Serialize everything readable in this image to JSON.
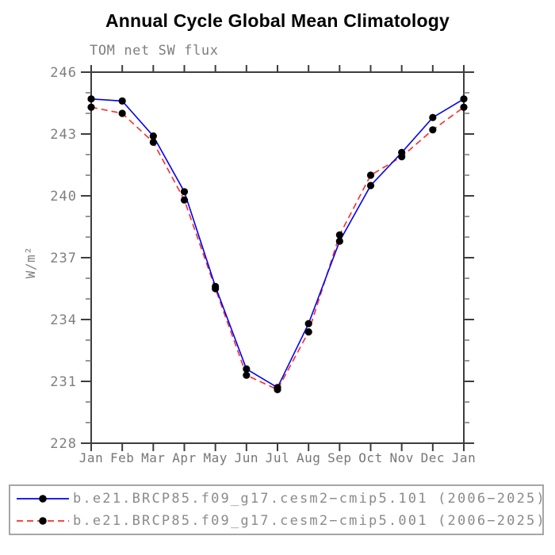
{
  "chart_data": {
    "type": "line",
    "title": "Annual Cycle Global Mean Climatology",
    "subtitle": "TOM net SW flux",
    "ylabel": "W/m²",
    "xlabel": "",
    "x_categories": [
      "Jan",
      "Feb",
      "Mar",
      "Apr",
      "May",
      "Jun",
      "Jul",
      "Aug",
      "Sep",
      "Oct",
      "Nov",
      "Dec",
      "Jan"
    ],
    "ylim": [
      228,
      246
    ],
    "ytick_major": [
      246,
      243,
      240,
      237,
      234,
      231,
      228
    ],
    "ytick_minor_step": 1,
    "grid": false,
    "legend_position": "bottom-left-box",
    "series": [
      {
        "name": "b.e21.BRCP85.f09_g17.cesm2−cmip5.101 (2006−2025)",
        "color": "#0000f5",
        "line_style": "solid",
        "marker": "filled-circle",
        "marker_color": "#000000",
        "values": [
          244.7,
          244.6,
          242.9,
          240.2,
          235.6,
          231.6,
          230.7,
          233.8,
          237.8,
          240.5,
          242.1,
          243.8,
          244.7
        ]
      },
      {
        "name": "b.e21.BRCP85.f09_g17.cesm2−cmip5.001 (2006−2025)",
        "color": "#ff2a2a",
        "line_style": "dashed",
        "marker": "filled-circle",
        "marker_color": "#000000",
        "values": [
          244.3,
          244.0,
          242.6,
          239.8,
          235.5,
          231.3,
          230.6,
          233.4,
          238.1,
          241.0,
          241.9,
          243.2,
          244.3
        ]
      }
    ]
  }
}
